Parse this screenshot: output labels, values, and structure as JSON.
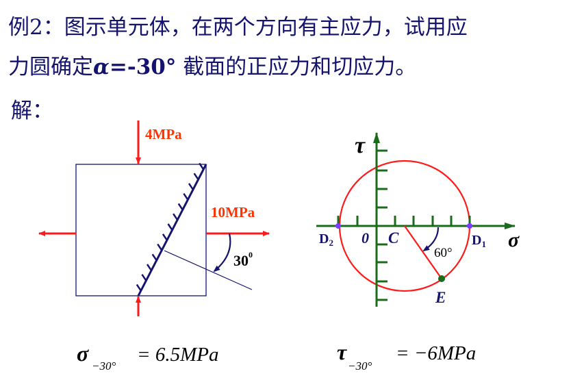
{
  "slide": {
    "title_line1": "例2：图示单元体，在两个方向有主应力，试用应",
    "title_line2_prefix": "力圆确定",
    "title_alpha": "α",
    "title_angle": "=-30°",
    "title_line2_suffix": " 截面的正应力和切应力。",
    "solution_label": "解："
  },
  "element_diagram": {
    "vertical_stress_label": "4MPa",
    "horizontal_stress_label": "10MPa",
    "angle_label": "30",
    "angle_superscript": "0"
  },
  "mohr_circle": {
    "tau_axis_label": "τ",
    "sigma_axis_label": "σ",
    "origin_label": "0",
    "center_label": "C",
    "d1_label": "D",
    "d1_sub": "1",
    "d2_label": "D",
    "d2_sub": "2",
    "point_e_label": "E",
    "angle_label": "60°"
  },
  "results": {
    "sigma_symbol": "σ",
    "sigma_sub": "−30°",
    "sigma_value": "= 6.5MPa",
    "tau_symbol": "τ",
    "tau_sub": "−30°",
    "tau_value": "= −6MPa"
  },
  "colors": {
    "text": "#14146e",
    "stress_arrows": "#ff1a1a",
    "axes": "#1a6b1a",
    "circle": "#ff1a1a",
    "points_d": "#7a3cff",
    "point_e": "#1a6b1a"
  }
}
